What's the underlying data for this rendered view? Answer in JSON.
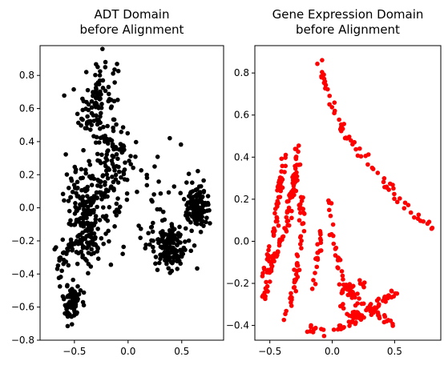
{
  "chart_data": [
    {
      "type": "scatter",
      "title": [
        "ADT Domain",
        "before Alignment"
      ],
      "color": "#000000",
      "xlabel": "",
      "ylabel": "",
      "xlim": [
        -0.82,
        0.89
      ],
      "ylim": [
        -0.8,
        0.98
      ],
      "xticks": [
        -0.5,
        0.0,
        0.5
      ],
      "xtick_labels": [
        "−0.5",
        "0.0",
        "0.5"
      ],
      "yticks": [
        -0.8,
        -0.6,
        -0.4,
        -0.2,
        0.0,
        0.2,
        0.4,
        0.6,
        0.8
      ],
      "ytick_labels": [
        "−0.8",
        "−0.6",
        "−0.4",
        "−0.2",
        "0.0",
        "0.2",
        "0.4",
        "0.6",
        "0.8"
      ],
      "grid": false,
      "clusters": [
        {
          "cx": -0.28,
          "cy": 0.62,
          "sx": 0.09,
          "sy": 0.16,
          "n": 120
        },
        {
          "cx": -0.12,
          "cy": 0.28,
          "sx": 0.08,
          "sy": 0.1,
          "n": 60
        },
        {
          "cx": -0.35,
          "cy": 0.05,
          "sx": 0.12,
          "sy": 0.1,
          "n": 140
        },
        {
          "cx": -0.4,
          "cy": -0.2,
          "sx": 0.08,
          "sy": 0.08,
          "n": 90
        },
        {
          "cx": -0.52,
          "cy": -0.58,
          "sx": 0.04,
          "sy": 0.06,
          "n": 70
        },
        {
          "cx": -0.6,
          "cy": -0.3,
          "sx": 0.04,
          "sy": 0.12,
          "n": 25
        },
        {
          "cx": 0.38,
          "cy": -0.22,
          "sx": 0.09,
          "sy": 0.07,
          "n": 140
        },
        {
          "cx": 0.65,
          "cy": 0.0,
          "sx": 0.06,
          "sy": 0.07,
          "n": 130
        },
        {
          "cx": 0.15,
          "cy": 0.05,
          "sx": 0.22,
          "sy": 0.22,
          "n": 45
        }
      ]
    },
    {
      "type": "scatter",
      "title": [
        "Gene Expression Domain",
        "before Alignment"
      ],
      "color": "#ff0000",
      "xlabel": "",
      "ylabel": "",
      "xlim": [
        -0.62,
        0.87
      ],
      "ylim": [
        -0.47,
        0.93
      ],
      "xticks": [
        -0.5,
        0.0,
        0.5
      ],
      "xtick_labels": [
        "−0.5",
        "0.0",
        "0.5"
      ],
      "yticks": [
        -0.4,
        -0.2,
        0.0,
        0.2,
        0.4,
        0.6,
        0.8
      ],
      "ytick_labels": [
        "−0.4",
        "−0.2",
        "0.0",
        "0.2",
        "0.4",
        "0.6",
        "0.8"
      ],
      "grid": false,
      "strands": [
        {
          "pts": [
            [
              -0.12,
              0.88
            ],
            [
              -0.08,
              0.78
            ],
            [
              0.02,
              0.62
            ],
            [
              0.1,
              0.5
            ],
            [
              0.25,
              0.42
            ],
            [
              0.38,
              0.32
            ],
            [
              0.5,
              0.22
            ],
            [
              0.65,
              0.13
            ],
            [
              0.8,
              0.05
            ]
          ],
          "n": 70
        },
        {
          "pts": [
            [
              -0.28,
              0.44
            ],
            [
              -0.3,
              0.3
            ],
            [
              -0.34,
              0.15
            ],
            [
              -0.4,
              0.0
            ],
            [
              -0.48,
              -0.1
            ],
            [
              -0.55,
              -0.3
            ]
          ],
          "n": 90
        },
        {
          "pts": [
            [
              -0.38,
              0.4
            ],
            [
              -0.42,
              0.25
            ],
            [
              -0.45,
              0.1
            ],
            [
              -0.5,
              -0.05
            ],
            [
              -0.55,
              -0.2
            ]
          ],
          "n": 60
        },
        {
          "pts": [
            [
              -0.25,
              0.22
            ],
            [
              -0.25,
              0.05
            ],
            [
              -0.27,
              -0.1
            ],
            [
              -0.32,
              -0.25
            ],
            [
              -0.38,
              -0.35
            ]
          ],
          "n": 50
        },
        {
          "pts": [
            [
              -0.1,
              0.05
            ],
            [
              -0.12,
              -0.1
            ],
            [
              -0.16,
              -0.25
            ]
          ],
          "n": 20
        },
        {
          "pts": [
            [
              -0.02,
              0.2
            ],
            [
              0.0,
              0.05
            ],
            [
              0.05,
              -0.1
            ],
            [
              0.12,
              -0.22
            ],
            [
              0.25,
              -0.3
            ],
            [
              0.38,
              -0.35
            ],
            [
              0.48,
              -0.4
            ]
          ],
          "n": 55
        },
        {
          "pts": [
            [
              -0.22,
              -0.42
            ],
            [
              -0.1,
              -0.43
            ],
            [
              0.05,
              -0.42
            ],
            [
              0.18,
              -0.38
            ],
            [
              0.3,
              -0.33
            ],
            [
              0.4,
              -0.28
            ],
            [
              0.5,
              -0.25
            ]
          ],
          "n": 60
        },
        {
          "pts": [
            [
              0.05,
              -0.2
            ],
            [
              0.15,
              -0.25
            ],
            [
              0.22,
              -0.32
            ],
            [
              0.18,
              -0.36
            ],
            [
              0.08,
              -0.32
            ],
            [
              0.1,
              -0.22
            ],
            [
              0.28,
              -0.2
            ]
          ],
          "n": 55
        }
      ]
    }
  ]
}
